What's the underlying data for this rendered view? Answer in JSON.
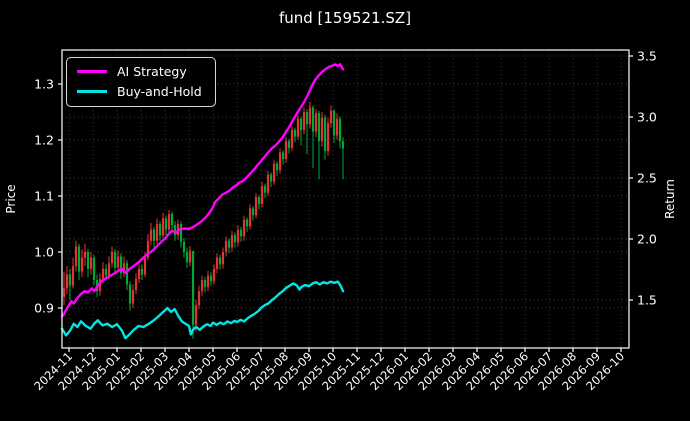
{
  "chart_data": {
    "type": "candlestick+line",
    "title": "fund [159521.SZ]",
    "x_axis": {
      "note": "month index 0 = 2024-11, one unit per month",
      "tick_labels": [
        "2024-11",
        "2024-12",
        "2025-01",
        "2025-02",
        "2025-03",
        "2025-04",
        "2025-05",
        "2025-06",
        "2025-07",
        "2025-08",
        "2025-09",
        "2025-10",
        "2025-11",
        "2025-12",
        "2026-01",
        "2026-02",
        "2026-03",
        "2026-04",
        "2026-05",
        "2026-06",
        "2026-07",
        "2026-08",
        "2026-09",
        "2026-10"
      ],
      "range_month_index": [
        -0.292,
        23.333
      ]
    },
    "y_left": {
      "label": "Price",
      "ticks": [
        0.9,
        1.0,
        1.1,
        1.2,
        1.3
      ],
      "range": [
        0.829,
        1.361
      ]
    },
    "y_right": {
      "label": "Return",
      "ticks": [
        1.5,
        2.0,
        2.5,
        3.0,
        3.5
      ],
      "range": [
        1.107,
        3.55
      ]
    },
    "grid": true,
    "legend_position": "upper left",
    "colors": {
      "background": "#000000",
      "text": "#ffffff",
      "grid": "#3c3c3c",
      "spine": "#ffffff",
      "candle_up": "#e63232",
      "candle_down": "#00aa33",
      "ai_strategy": "#ff00ff",
      "buy_and_hold": "#00e5e5"
    },
    "candles": {
      "x_start_month_index": -0.208,
      "x_step_month": 0.125,
      "ohlc": [
        [
          0.92,
          0.965,
          0.905,
          0.935
        ],
        [
          0.935,
          0.975,
          0.925,
          0.96
        ],
        [
          0.96,
          0.97,
          0.915,
          0.94
        ],
        [
          0.94,
          0.99,
          0.935,
          0.975
        ],
        [
          0.975,
          1.02,
          0.965,
          1.01
        ],
        [
          1.01,
          1.015,
          0.95,
          0.965
        ],
        [
          0.965,
          1.005,
          0.955,
          0.99
        ],
        [
          0.99,
          1.015,
          0.975,
          1.0
        ],
        [
          1.0,
          1.005,
          0.955,
          0.97
        ],
        [
          0.97,
          1.0,
          0.96,
          0.99
        ],
        [
          0.99,
          0.995,
          0.94,
          0.95
        ],
        [
          0.95,
          0.96,
          0.92,
          0.93
        ],
        [
          0.93,
          0.962,
          0.922,
          0.952
        ],
        [
          0.952,
          0.982,
          0.945,
          0.97
        ],
        [
          0.97,
          0.978,
          0.948,
          0.958
        ],
        [
          0.958,
          0.992,
          0.952,
          0.98
        ],
        [
          0.98,
          1.01,
          0.972,
          1.0
        ],
        [
          1.0,
          1.005,
          0.962,
          0.972
        ],
        [
          0.972,
          1.002,
          0.965,
          0.992
        ],
        [
          0.992,
          0.998,
          0.952,
          0.962
        ],
        [
          0.962,
          0.992,
          0.955,
          0.98
        ],
        [
          0.98,
          0.985,
          0.932,
          0.942
        ],
        [
          0.942,
          0.948,
          0.895,
          0.908
        ],
        [
          0.908,
          0.942,
          0.9,
          0.932
        ],
        [
          0.932,
          0.962,
          0.925,
          0.952
        ],
        [
          0.952,
          0.98,
          0.945,
          0.97
        ],
        [
          0.97,
          0.978,
          0.95,
          0.96
        ],
        [
          0.96,
          1.0,
          0.955,
          0.99
        ],
        [
          0.99,
          1.032,
          0.985,
          1.02
        ],
        [
          1.02,
          1.052,
          1.012,
          1.04
        ],
        [
          1.04,
          1.045,
          1.008,
          1.02
        ],
        [
          1.02,
          1.06,
          1.015,
          1.05
        ],
        [
          1.05,
          1.055,
          1.02,
          1.03
        ],
        [
          1.03,
          1.07,
          1.025,
          1.06
        ],
        [
          1.06,
          1.065,
          1.03,
          1.04
        ],
        [
          1.04,
          1.075,
          1.035,
          1.068
        ],
        [
          1.068,
          1.072,
          1.038,
          1.048
        ],
        [
          1.048,
          1.055,
          1.02,
          1.03
        ],
        [
          1.03,
          1.058,
          1.022,
          1.05
        ],
        [
          1.05,
          1.055,
          1.008,
          1.018
        ],
        [
          1.018,
          1.025,
          0.99,
          1.0
        ],
        [
          1.0,
          1.008,
          0.972,
          0.982
        ],
        [
          0.982,
          1.01,
          0.975,
          1.002
        ],
        [
          1.002,
          1.002,
          0.845,
          0.87
        ],
        [
          0.87,
          0.915,
          0.858,
          0.905
        ],
        [
          0.905,
          0.94,
          0.898,
          0.93
        ],
        [
          0.93,
          0.958,
          0.922,
          0.95
        ],
        [
          0.95,
          0.955,
          0.928,
          0.938
        ],
        [
          0.938,
          0.966,
          0.93,
          0.958
        ],
        [
          0.958,
          0.964,
          0.94,
          0.948
        ],
        [
          0.948,
          0.978,
          0.942,
          0.97
        ],
        [
          0.97,
          0.998,
          0.962,
          0.99
        ],
        [
          0.99,
          0.995,
          0.968,
          0.978
        ],
        [
          0.978,
          1.008,
          0.97,
          1.0
        ],
        [
          1.0,
          1.028,
          0.992,
          1.02
        ],
        [
          1.02,
          1.025,
          0.998,
          1.008
        ],
        [
          1.008,
          1.038,
          1.0,
          1.03
        ],
        [
          1.03,
          1.035,
          1.008,
          1.018
        ],
        [
          1.018,
          1.048,
          1.01,
          1.04
        ],
        [
          1.04,
          1.045,
          1.018,
          1.028
        ],
        [
          1.028,
          1.065,
          1.02,
          1.058
        ],
        [
          1.058,
          1.062,
          1.036,
          1.046
        ],
        [
          1.046,
          1.085,
          1.04,
          1.078
        ],
        [
          1.078,
          1.082,
          1.056,
          1.066
        ],
        [
          1.066,
          1.105,
          1.06,
          1.098
        ],
        [
          1.098,
          1.102,
          1.076,
          1.086
        ],
        [
          1.086,
          1.125,
          1.08,
          1.118
        ],
        [
          1.118,
          1.122,
          1.096,
          1.106
        ],
        [
          1.106,
          1.145,
          1.1,
          1.138
        ],
        [
          1.138,
          1.142,
          1.116,
          1.126
        ],
        [
          1.126,
          1.165,
          1.12,
          1.158
        ],
        [
          1.158,
          1.162,
          1.136,
          1.146
        ],
        [
          1.146,
          1.185,
          1.14,
          1.178
        ],
        [
          1.178,
          1.182,
          1.156,
          1.166
        ],
        [
          1.166,
          1.205,
          1.16,
          1.198
        ],
        [
          1.198,
          1.202,
          1.176,
          1.186
        ],
        [
          1.186,
          1.225,
          1.18,
          1.218
        ],
        [
          1.218,
          1.222,
          1.196,
          1.206
        ],
        [
          1.206,
          1.245,
          1.2,
          1.238
        ],
        [
          1.238,
          1.242,
          1.19,
          1.218
        ],
        [
          1.218,
          1.258,
          1.21,
          1.25
        ],
        [
          1.25,
          1.255,
          1.175,
          1.228
        ],
        [
          1.228,
          1.268,
          1.22,
          1.258
        ],
        [
          1.258,
          1.262,
          1.15,
          1.215
        ],
        [
          1.215,
          1.255,
          1.205,
          1.248
        ],
        [
          1.248,
          1.252,
          1.13,
          1.198
        ],
        [
          1.198,
          1.25,
          1.188,
          1.24
        ],
        [
          1.24,
          1.245,
          1.165,
          1.18
        ],
        [
          1.18,
          1.24,
          1.172,
          1.23
        ],
        [
          1.23,
          1.262,
          1.222,
          1.252
        ],
        [
          1.252,
          1.255,
          1.195,
          1.208
        ],
        [
          1.208,
          1.248,
          1.2,
          1.238
        ],
        [
          1.238,
          1.242,
          1.185,
          1.198
        ],
        [
          1.198,
          1.205,
          1.13,
          1.185
        ]
      ]
    },
    "series": [
      {
        "name": "AI Strategy",
        "axis": "left",
        "points": [
          [
            -0.29,
            0.885
          ],
          [
            -0.2,
            0.89
          ],
          [
            -0.1,
            0.898
          ],
          [
            0.0,
            0.905
          ],
          [
            0.1,
            0.912
          ],
          [
            0.2,
            0.908
          ],
          [
            0.35,
            0.918
          ],
          [
            0.5,
            0.925
          ],
          [
            0.65,
            0.93
          ],
          [
            0.8,
            0.928
          ],
          [
            0.95,
            0.935
          ],
          [
            1.05,
            0.93
          ],
          [
            1.2,
            0.94
          ],
          [
            1.35,
            0.948
          ],
          [
            1.5,
            0.952
          ],
          [
            1.7,
            0.957
          ],
          [
            1.9,
            0.962
          ],
          [
            2.05,
            0.966
          ],
          [
            2.2,
            0.97
          ],
          [
            2.35,
            0.963
          ],
          [
            2.5,
            0.969
          ],
          [
            2.7,
            0.975
          ],
          [
            2.9,
            0.982
          ],
          [
            3.1,
            0.99
          ],
          [
            3.3,
            0.997
          ],
          [
            3.5,
            1.003
          ],
          [
            3.7,
            1.012
          ],
          [
            3.9,
            1.02
          ],
          [
            4.0,
            1.024
          ],
          [
            4.15,
            1.032
          ],
          [
            4.3,
            1.038
          ],
          [
            4.45,
            1.034
          ],
          [
            4.6,
            1.04
          ],
          [
            4.8,
            1.042
          ],
          [
            5.0,
            1.041
          ],
          [
            5.15,
            1.044
          ],
          [
            5.3,
            1.048
          ],
          [
            5.5,
            1.054
          ],
          [
            5.7,
            1.062
          ],
          [
            5.85,
            1.07
          ],
          [
            6.0,
            1.08
          ],
          [
            6.1,
            1.09
          ],
          [
            6.25,
            1.096
          ],
          [
            6.4,
            1.103
          ],
          [
            6.55,
            1.106
          ],
          [
            6.7,
            1.11
          ],
          [
            6.85,
            1.116
          ],
          [
            7.0,
            1.12
          ],
          [
            7.1,
            1.124
          ],
          [
            7.25,
            1.127
          ],
          [
            7.4,
            1.133
          ],
          [
            7.55,
            1.14
          ],
          [
            7.7,
            1.147
          ],
          [
            7.85,
            1.155
          ],
          [
            8.0,
            1.162
          ],
          [
            8.15,
            1.17
          ],
          [
            8.3,
            1.178
          ],
          [
            8.45,
            1.185
          ],
          [
            8.6,
            1.19
          ],
          [
            8.75,
            1.197
          ],
          [
            8.9,
            1.205
          ],
          [
            9.05,
            1.215
          ],
          [
            9.2,
            1.225
          ],
          [
            9.35,
            1.237
          ],
          [
            9.5,
            1.248
          ],
          [
            9.65,
            1.258
          ],
          [
            9.8,
            1.268
          ],
          [
            9.95,
            1.28
          ],
          [
            10.1,
            1.295
          ],
          [
            10.25,
            1.307
          ],
          [
            10.4,
            1.315
          ],
          [
            10.55,
            1.322
          ],
          [
            10.7,
            1.327
          ],
          [
            10.85,
            1.331
          ],
          [
            11.0,
            1.333
          ],
          [
            11.1,
            1.335
          ],
          [
            11.2,
            1.332
          ],
          [
            11.3,
            1.335
          ],
          [
            11.42,
            1.326
          ]
        ]
      },
      {
        "name": "Buy-and-Hold",
        "axis": "left",
        "points": [
          [
            -0.29,
            0.863
          ],
          [
            -0.12,
            0.851
          ],
          [
            0.05,
            0.86
          ],
          [
            0.2,
            0.872
          ],
          [
            0.35,
            0.866
          ],
          [
            0.5,
            0.876
          ],
          [
            0.7,
            0.868
          ],
          [
            0.9,
            0.863
          ],
          [
            1.05,
            0.872
          ],
          [
            1.2,
            0.878
          ],
          [
            1.4,
            0.869
          ],
          [
            1.6,
            0.872
          ],
          [
            1.8,
            0.866
          ],
          [
            2.0,
            0.871
          ],
          [
            2.2,
            0.86
          ],
          [
            2.35,
            0.846
          ],
          [
            2.5,
            0.852
          ],
          [
            2.7,
            0.861
          ],
          [
            2.9,
            0.868
          ],
          [
            3.1,
            0.866
          ],
          [
            3.3,
            0.871
          ],
          [
            3.5,
            0.877
          ],
          [
            3.7,
            0.884
          ],
          [
            3.9,
            0.892
          ],
          [
            4.1,
            0.9
          ],
          [
            4.25,
            0.893
          ],
          [
            4.4,
            0.898
          ],
          [
            4.55,
            0.886
          ],
          [
            4.7,
            0.876
          ],
          [
            4.85,
            0.872
          ],
          [
            5.0,
            0.868
          ],
          [
            5.08,
            0.853
          ],
          [
            5.18,
            0.862
          ],
          [
            5.3,
            0.866
          ],
          [
            5.45,
            0.861
          ],
          [
            5.6,
            0.867
          ],
          [
            5.75,
            0.871
          ],
          [
            5.9,
            0.868
          ],
          [
            6.0,
            0.874
          ],
          [
            6.15,
            0.87
          ],
          [
            6.3,
            0.874
          ],
          [
            6.45,
            0.871
          ],
          [
            6.6,
            0.876
          ],
          [
            6.75,
            0.873
          ],
          [
            6.9,
            0.877
          ],
          [
            7.0,
            0.875
          ],
          [
            7.15,
            0.879
          ],
          [
            7.3,
            0.876
          ],
          [
            7.45,
            0.882
          ],
          [
            7.6,
            0.886
          ],
          [
            7.75,
            0.89
          ],
          [
            7.9,
            0.895
          ],
          [
            8.0,
            0.9
          ],
          [
            8.15,
            0.905
          ],
          [
            8.3,
            0.908
          ],
          [
            8.45,
            0.914
          ],
          [
            8.6,
            0.919
          ],
          [
            8.75,
            0.925
          ],
          [
            8.9,
            0.93
          ],
          [
            9.05,
            0.936
          ],
          [
            9.2,
            0.94
          ],
          [
            9.35,
            0.944
          ],
          [
            9.5,
            0.94
          ],
          [
            9.6,
            0.933
          ],
          [
            9.7,
            0.938
          ],
          [
            9.85,
            0.941
          ],
          [
            10.0,
            0.939
          ],
          [
            10.15,
            0.944
          ],
          [
            10.3,
            0.946
          ],
          [
            10.45,
            0.942
          ],
          [
            10.6,
            0.946
          ],
          [
            10.75,
            0.944
          ],
          [
            10.9,
            0.947
          ],
          [
            11.05,
            0.945
          ],
          [
            11.2,
            0.947
          ],
          [
            11.3,
            0.941
          ],
          [
            11.42,
            0.93
          ]
        ]
      }
    ]
  },
  "legend": {
    "items": [
      {
        "label": "AI Strategy"
      },
      {
        "label": "Buy-and-Hold"
      }
    ]
  }
}
